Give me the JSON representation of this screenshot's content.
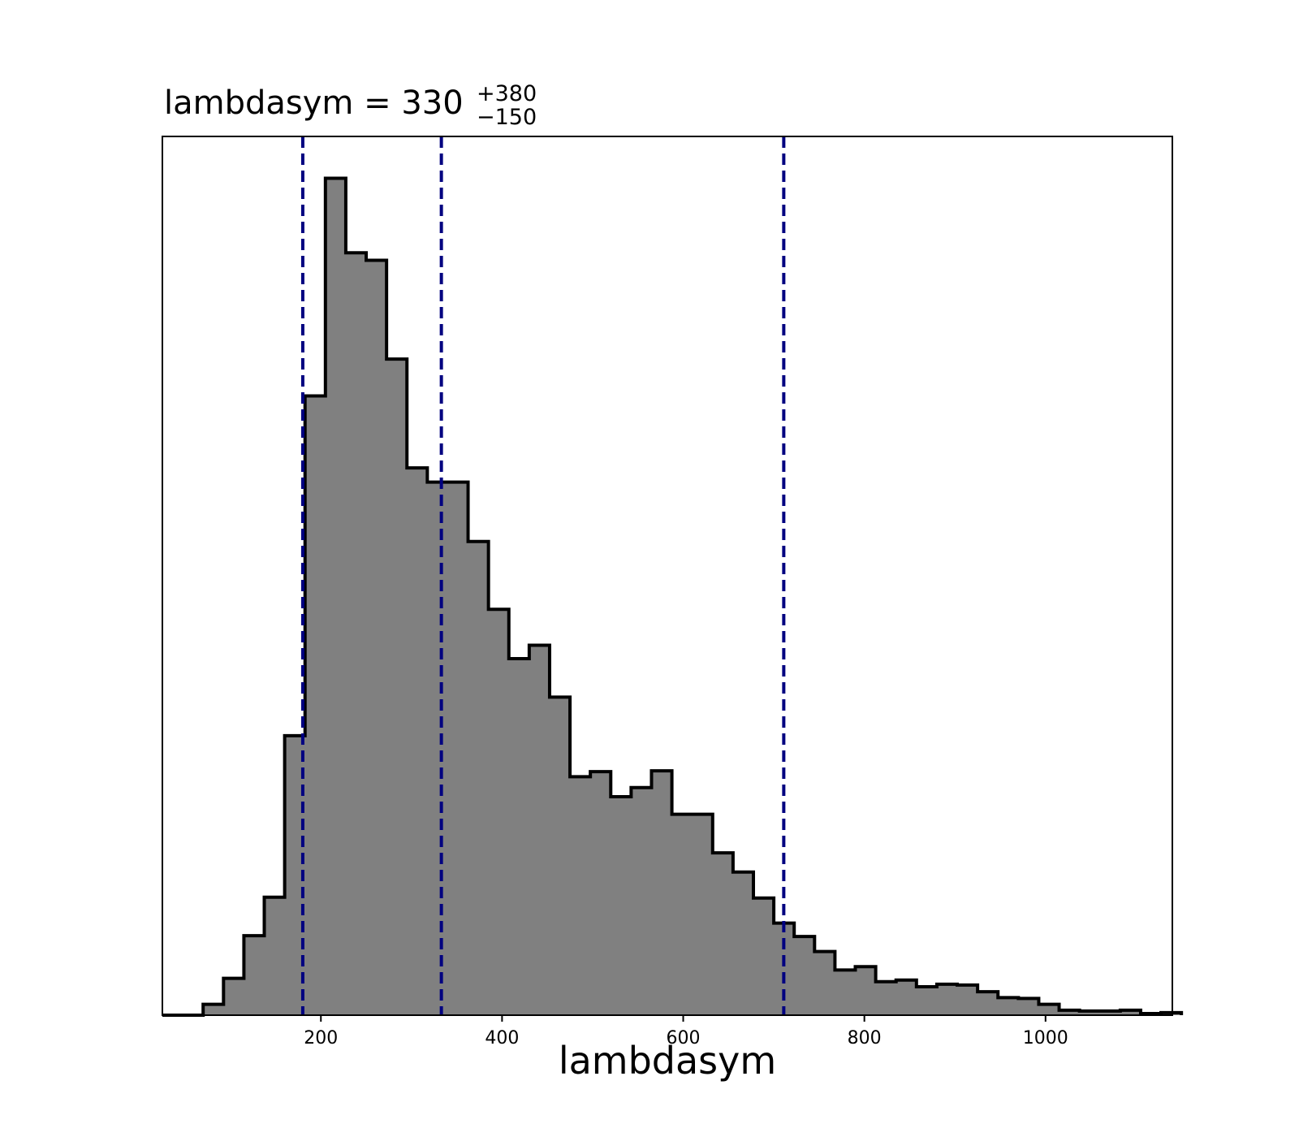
{
  "chart_data": {
    "type": "histogram",
    "title": {
      "prefix": "lambdasym = ",
      "value": "330",
      "upper": "+380",
      "lower": "−150"
    },
    "xlabel": "lambdasym",
    "ylabel": "",
    "xlim": [
      25,
      1140
    ],
    "ylim": [
      0,
      1.05
    ],
    "x_ticks": [
      200,
      400,
      600,
      800,
      1000
    ],
    "y_ticks_shown": false,
    "grid": false,
    "legend": "none",
    "bin_width": 22.5,
    "bin_edges_start": 25,
    "bin_counts": [
      0,
      0,
      0.013,
      0.044,
      0.095,
      0.141,
      0.334,
      0.74,
      1.0,
      0.911,
      0.902,
      0.784,
      0.654,
      0.637,
      0.637,
      0.566,
      0.485,
      0.426,
      0.442,
      0.38,
      0.285,
      0.291,
      0.261,
      0.272,
      0.292,
      0.24,
      0.24,
      0.194,
      0.171,
      0.14,
      0.11,
      0.094,
      0.076,
      0.054,
      0.058,
      0.04,
      0.042,
      0.034,
      0.037,
      0.036,
      0.028,
      0.021,
      0.02,
      0.013,
      0.006,
      0.005,
      0.005,
      0.006,
      0.002,
      0.003
    ],
    "quantile_lines": [
      180,
      333,
      711
    ],
    "colors": {
      "fill": "#808080",
      "edge": "#000000",
      "quantile": "#000080",
      "axes": "#000000",
      "background": "#ffffff"
    }
  }
}
